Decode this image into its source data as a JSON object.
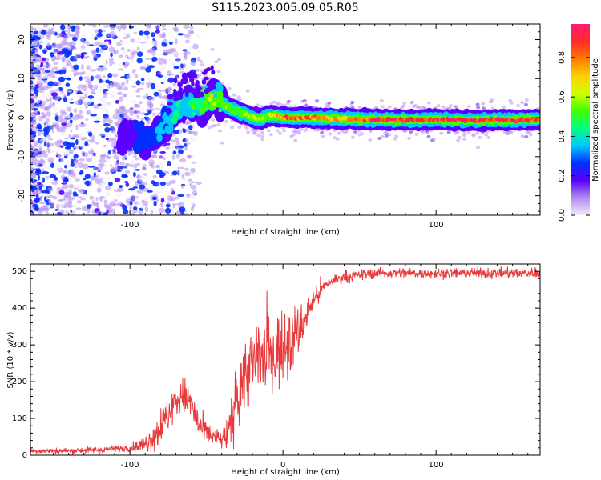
{
  "title": "S115.2023.005.09.05.R05",
  "colors": {
    "snr_line": "#e83a3a",
    "axis": "#000000",
    "colorbar_stops": [
      "#f3e9f8",
      "#b08cf0",
      "#5a00ff",
      "#0030ff",
      "#00c8ff",
      "#00ff80",
      "#40ff00",
      "#d0ff00",
      "#ffd000",
      "#ff7a00",
      "#ff2a2a",
      "#ff1a6e"
    ]
  },
  "chart_data": [
    {
      "type": "heatmap",
      "title": "",
      "xlabel": "Height of straight line (km)",
      "ylabel": "Frequency (Hz)",
      "xlim": [
        -165,
        168
      ],
      "ylim": [
        -25,
        24
      ],
      "x_ticks": [
        -100,
        0,
        100
      ],
      "x_tick_labels": [
        "-100",
        "",
        "100"
      ],
      "y_ticks": [
        -20,
        -10,
        0,
        10,
        20
      ],
      "y_tick_labels": [
        "-20",
        "-10",
        "0",
        "10",
        "20"
      ],
      "colorbar": {
        "label": "Normalized spectral amplitude",
        "range": [
          0,
          0.97
        ],
        "ticks": [
          0.0,
          0.2,
          0.4,
          0.6,
          0.8
        ],
        "tick_labels": [
          "0.0",
          "0.2",
          "0.4",
          "0.6",
          "0.8"
        ]
      },
      "ridge": {
        "x": [
          -100,
          -95,
          -90,
          -85,
          -80,
          -75,
          -70,
          -65,
          -60,
          -55,
          -50,
          -47,
          -44,
          -40,
          -35,
          -30,
          -25,
          -20,
          -15,
          -10,
          -5,
          0,
          10,
          20,
          40,
          60,
          80,
          100,
          120,
          140,
          168
        ],
        "y": [
          -4,
          -5,
          -6,
          -4,
          -3,
          -1,
          2,
          3,
          3.5,
          3,
          4.5,
          5.5,
          5,
          3.5,
          2.5,
          1.5,
          1,
          0,
          -0.5,
          0.5,
          0.5,
          0,
          0,
          0,
          -0.3,
          -0.5,
          -0.6,
          -0.5,
          -0.7,
          -0.6,
          -0.5
        ],
        "amplitude": [
          0.2,
          0.25,
          0.25,
          0.3,
          0.3,
          0.35,
          0.4,
          0.4,
          0.45,
          0.5,
          0.55,
          0.7,
          0.6,
          0.6,
          0.55,
          0.55,
          0.6,
          0.65,
          0.6,
          0.6,
          0.7,
          0.85,
          0.85,
          0.8,
          0.75,
          0.95,
          0.95,
          0.95,
          0.95,
          0.95,
          0.95
        ]
      },
      "grid": false
    },
    {
      "type": "line",
      "title": "",
      "xlabel": "Height of straight line (km)",
      "ylabel": "SNR (10 * v/v)",
      "xlim": [
        -165,
        168
      ],
      "ylim": [
        0,
        520
      ],
      "x_ticks": [
        -100,
        0,
        100
      ],
      "x_tick_labels": [
        "-100",
        "0",
        "100"
      ],
      "y_ticks": [
        0,
        100,
        200,
        300,
        400,
        500
      ],
      "y_tick_labels": [
        "0",
        "100",
        "200",
        "300",
        "400",
        "500"
      ],
      "envelope": {
        "x": [
          -165,
          -140,
          -120,
          -100,
          -90,
          -80,
          -75,
          -70,
          -65,
          -60,
          -55,
          -50,
          -45,
          -40,
          -35,
          -30,
          -25,
          -20,
          -15,
          -10,
          -5,
          0,
          5,
          10,
          15,
          20,
          25,
          30,
          40,
          50,
          60,
          80,
          100,
          120,
          140,
          168
        ],
        "y": [
          12,
          12,
          15,
          20,
          30,
          70,
          110,
          150,
          160,
          140,
          80,
          60,
          50,
          40,
          60,
          170,
          220,
          250,
          260,
          270,
          280,
          290,
          310,
          340,
          380,
          420,
          450,
          470,
          485,
          490,
          495,
          495,
          495,
          495,
          495,
          495
        ]
      },
      "noise": {
        "x": [
          -165,
          -100,
          -90,
          -80,
          -60,
          -50,
          -40,
          -30,
          -20,
          -10,
          0,
          10,
          20,
          30,
          50,
          168
        ],
        "amplitude": [
          6,
          8,
          20,
          40,
          45,
          25,
          20,
          80,
          90,
          80,
          90,
          60,
          30,
          15,
          12,
          12
        ]
      },
      "grid": false
    }
  ]
}
